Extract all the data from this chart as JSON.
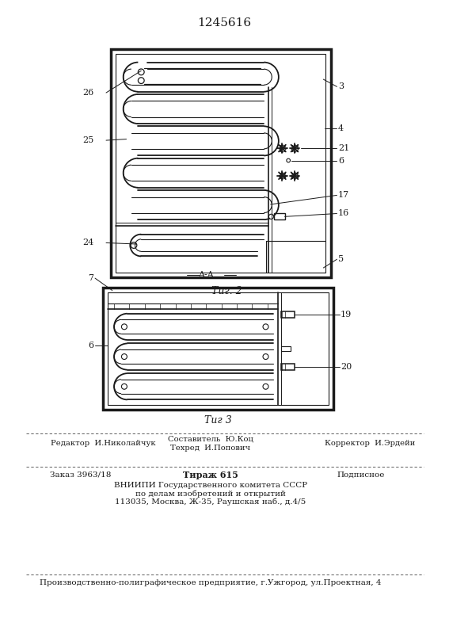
{
  "title": "1245616",
  "fig2_label": "Τиг. 2",
  "fig3_label": "Τиг 3",
  "fig3_section_label": "A-A",
  "bg_color": "#ffffff",
  "line_color": "#1a1a1a"
}
